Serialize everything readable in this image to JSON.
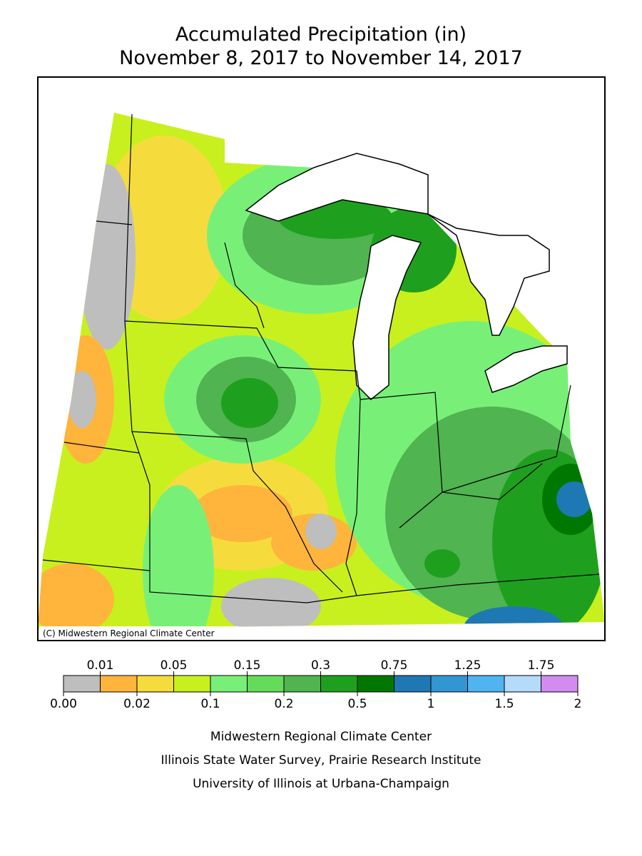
{
  "title": {
    "line1": "Accumulated Precipitation (in)",
    "line2": "November 8, 2017 to November 14, 2017"
  },
  "copyright": "(C) Midwestern Regional Climate Center",
  "legend": {
    "colors": [
      "#bebebe",
      "#ffb43c",
      "#f5dc3c",
      "#c8f01e",
      "#78f078",
      "#64dc5a",
      "#50b450",
      "#1ea01e",
      "#007800",
      "#1e78b4",
      "#3296d2",
      "#50b4f0",
      "#b4dcfa",
      "#d28cf0"
    ],
    "labels": [
      "0.00",
      "0.01",
      "0.02",
      "0.05",
      "0.1",
      "0.15",
      "0.2",
      "0.3",
      "0.5",
      "0.75",
      "1",
      "1.25",
      "1.5",
      "1.75",
      "2"
    ]
  },
  "footer": [
    "Midwestern Regional Climate Center",
    "Illinois State Water Survey, Prairie Research Institute",
    "University of Illinois at Urbana-Champaign"
  ]
}
